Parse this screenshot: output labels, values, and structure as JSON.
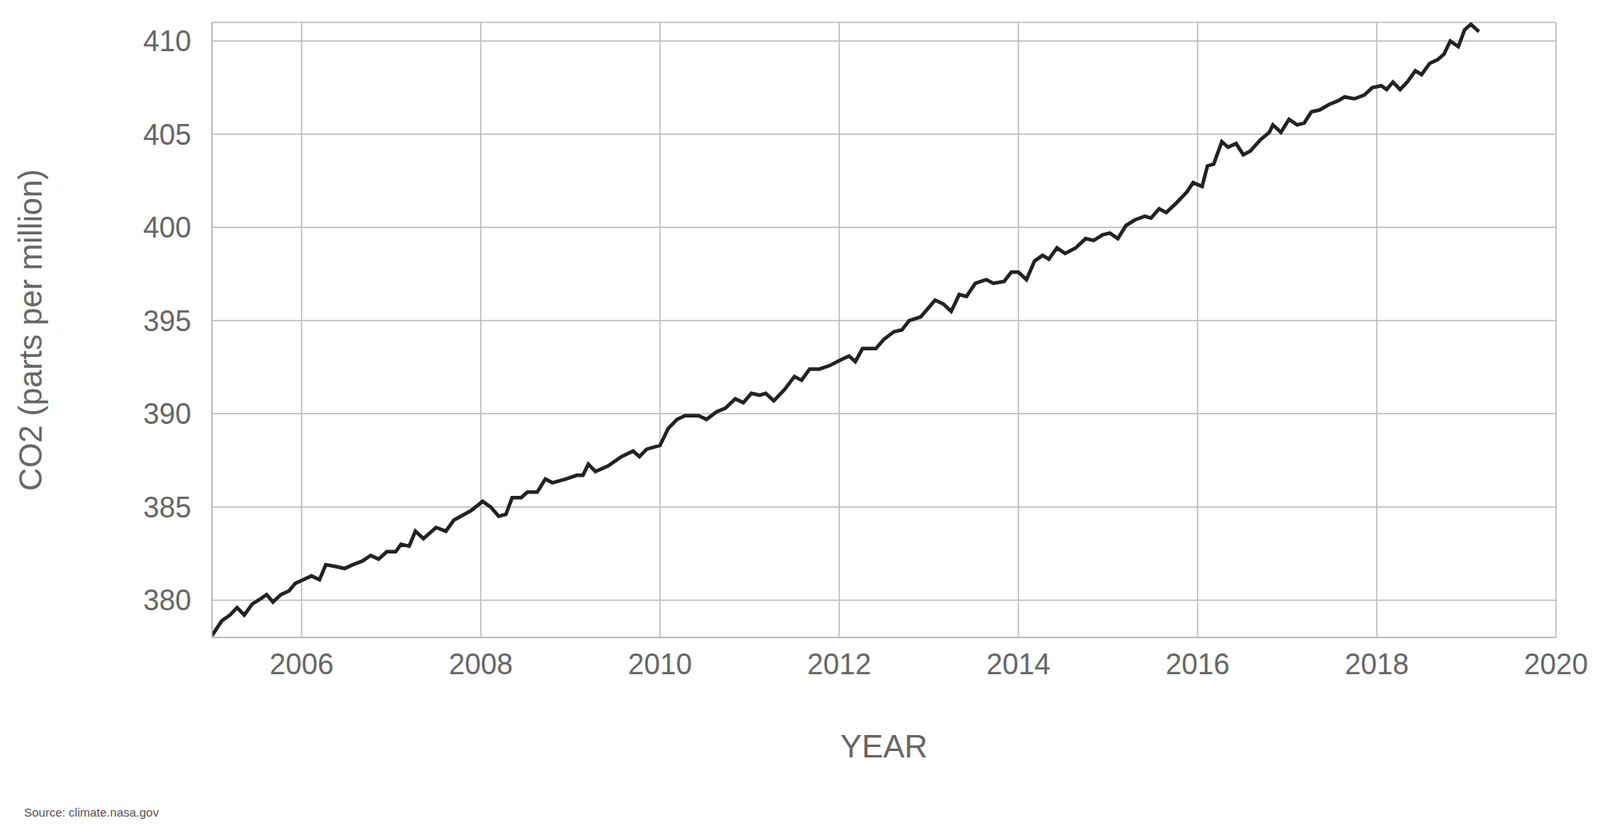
{
  "chart_data": {
    "type": "line",
    "xlabel": "YEAR",
    "ylabel": "CO2 (parts per million)",
    "source": "Source: climate.nasa.gov",
    "color": "#222222",
    "grid": true,
    "xlim": [
      2005,
      2020
    ],
    "ylim": [
      378,
      411
    ],
    "xticks": [
      2006,
      2008,
      2010,
      2012,
      2014,
      2016,
      2018,
      2020
    ],
    "yticks": [
      380,
      385,
      390,
      395,
      400,
      405,
      410
    ],
    "x": [
      2005.0,
      2005.11,
      2005.2,
      2005.28,
      2005.36,
      2005.45,
      2005.55,
      2005.61,
      2005.68,
      2005.77,
      2005.86,
      2005.93,
      2006.02,
      2006.11,
      2006.2,
      2006.27,
      2006.39,
      2006.48,
      2006.57,
      2006.68,
      2006.77,
      2006.86,
      2006.95,
      2007.05,
      2007.11,
      2007.2,
      2007.27,
      2007.36,
      2007.5,
      2007.61,
      2007.7,
      2007.89,
      2008.02,
      2008.11,
      2008.2,
      2008.28,
      2008.35,
      2008.45,
      2008.52,
      2008.63,
      2008.72,
      2008.8,
      2008.95,
      2009.07,
      2009.14,
      2009.2,
      2009.28,
      2009.42,
      2009.57,
      2009.7,
      2009.77,
      2009.85,
      2010.0,
      2010.09,
      2010.19,
      2010.28,
      2010.43,
      2010.52,
      2010.63,
      2010.73,
      2010.84,
      2010.93,
      2011.02,
      2011.11,
      2011.18,
      2011.27,
      2011.39,
      2011.5,
      2011.58,
      2011.67,
      2011.78,
      2011.9,
      2012.02,
      2012.11,
      2012.18,
      2012.26,
      2012.41,
      2012.5,
      2012.61,
      2012.7,
      2012.78,
      2012.91,
      2013.07,
      2013.16,
      2013.25,
      2013.34,
      2013.42,
      2013.52,
      2013.64,
      2013.72,
      2013.84,
      2013.92,
      2014.0,
      2014.09,
      2014.18,
      2014.27,
      2014.34,
      2014.43,
      2014.52,
      2014.64,
      2014.75,
      2014.84,
      2014.94,
      2015.02,
      2015.11,
      2015.2,
      2015.3,
      2015.41,
      2015.48,
      2015.57,
      2015.65,
      2015.76,
      2015.88,
      2015.95,
      2016.05,
      2016.11,
      2016.18,
      2016.27,
      2016.34,
      2016.43,
      2016.51,
      2016.59,
      2016.7,
      2016.8,
      2016.84,
      2016.93,
      2017.02,
      2017.11,
      2017.19,
      2017.27,
      2017.36,
      2017.47,
      2017.57,
      2017.64,
      2017.75,
      2017.86,
      2017.95,
      2018.05,
      2018.11,
      2018.18,
      2018.26,
      2018.34,
      2018.43,
      2018.5,
      2018.59,
      2018.68,
      2018.75,
      2018.82,
      2018.91,
      2018.98,
      2019.05,
      2019.14
    ],
    "values": [
      378.1,
      378.9,
      379.2,
      379.6,
      379.2,
      379.8,
      380.1,
      380.3,
      379.9,
      380.3,
      380.5,
      380.9,
      381.1,
      381.3,
      381.1,
      381.9,
      381.8,
      381.7,
      381.9,
      382.1,
      382.4,
      382.2,
      382.6,
      382.6,
      383.0,
      382.9,
      383.7,
      383.3,
      383.9,
      383.7,
      384.3,
      384.8,
      385.3,
      385.0,
      384.5,
      384.6,
      385.5,
      385.5,
      385.8,
      385.8,
      386.5,
      386.3,
      386.5,
      386.7,
      386.7,
      387.3,
      386.9,
      387.2,
      387.7,
      388.0,
      387.7,
      388.1,
      388.3,
      389.2,
      389.7,
      389.9,
      389.9,
      389.7,
      390.1,
      390.3,
      390.8,
      390.6,
      391.1,
      391.0,
      391.1,
      390.7,
      391.3,
      392.0,
      391.8,
      392.4,
      392.4,
      392.6,
      392.9,
      393.1,
      392.8,
      393.5,
      393.5,
      394.0,
      394.4,
      394.5,
      395.0,
      395.2,
      396.1,
      395.9,
      395.5,
      396.4,
      396.3,
      397.0,
      397.2,
      397.0,
      397.1,
      397.6,
      397.6,
      397.2,
      398.2,
      398.5,
      398.3,
      398.9,
      398.6,
      398.9,
      399.4,
      399.3,
      399.6,
      399.7,
      399.4,
      400.1,
      400.4,
      400.6,
      400.5,
      401.0,
      400.8,
      401.3,
      401.9,
      402.4,
      402.2,
      403.3,
      403.4,
      404.6,
      404.3,
      404.5,
      403.9,
      404.1,
      404.7,
      405.1,
      405.5,
      405.1,
      405.8,
      405.5,
      405.6,
      406.2,
      406.3,
      406.6,
      406.8,
      407.0,
      406.9,
      407.1,
      407.5,
      407.6,
      407.4,
      407.8,
      407.4,
      407.8,
      408.4,
      408.2,
      408.8,
      409.0,
      409.3,
      410.0,
      409.7,
      410.6,
      410.9,
      410.5
    ]
  }
}
